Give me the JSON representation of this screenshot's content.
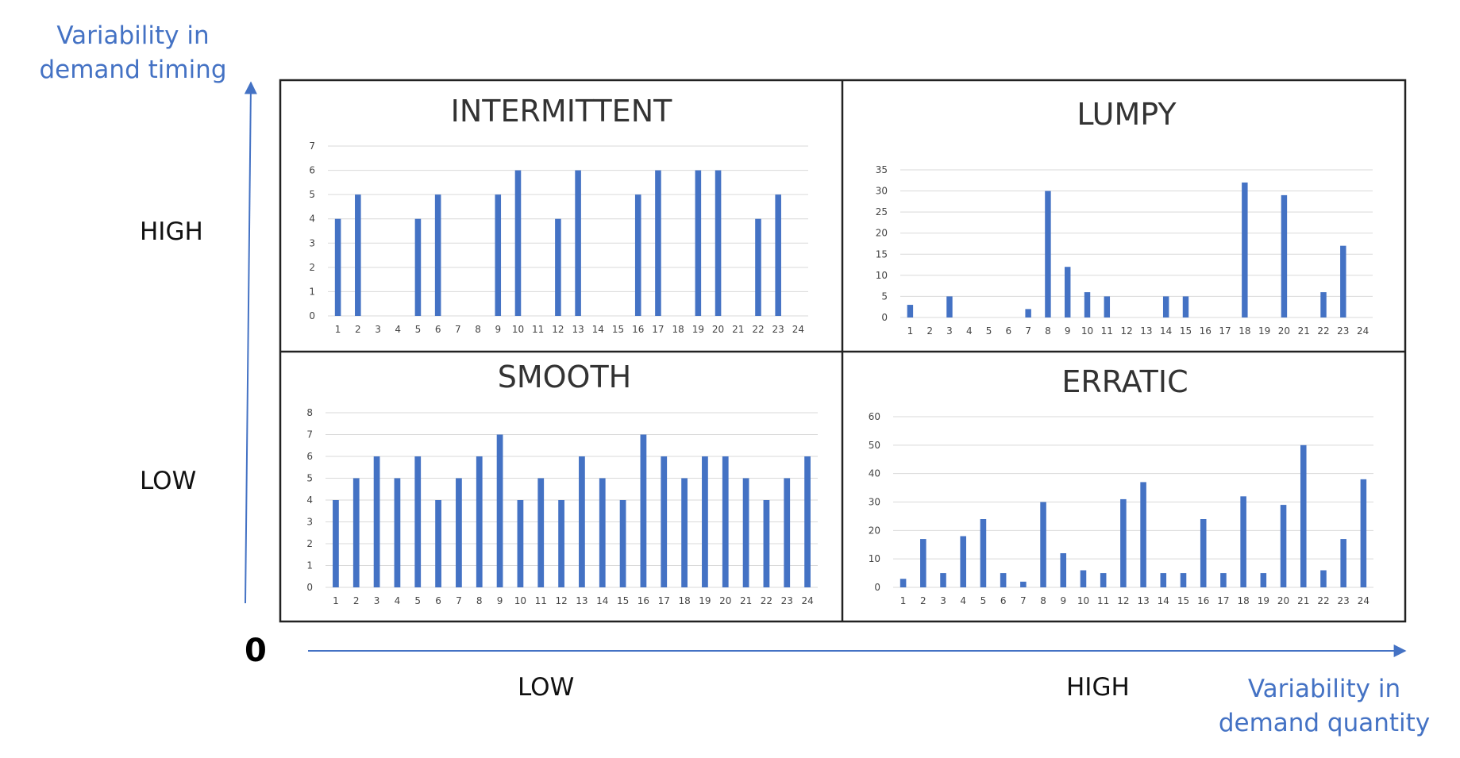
{
  "matrix": {
    "y_axis_title": [
      "Variability in",
      "demand timing"
    ],
    "x_axis_title": [
      "Variability in",
      "demand quantity"
    ],
    "origin_label": "0",
    "y_levels": {
      "high": "HIGH",
      "low": "LOW"
    },
    "x_levels": {
      "low": "LOW",
      "high": "HIGH"
    }
  },
  "colors": {
    "bar": "#4472C4",
    "axis_arrow": "#4472C4",
    "grid": "#D9D9D9",
    "border": "#222222"
  },
  "chart_data": [
    {
      "type": "bar",
      "title": "INTERMITTENT",
      "categories": [
        "1",
        "2",
        "3",
        "4",
        "5",
        "6",
        "7",
        "8",
        "9",
        "10",
        "11",
        "12",
        "13",
        "14",
        "15",
        "16",
        "17",
        "18",
        "19",
        "20",
        "21",
        "22",
        "23",
        "24"
      ],
      "values": [
        4,
        5,
        0,
        0,
        4,
        5,
        0,
        0,
        5,
        6,
        0,
        4,
        6,
        0,
        0,
        5,
        6,
        0,
        6,
        6,
        0,
        4,
        5,
        0
      ],
      "ylim": [
        0,
        7
      ],
      "yticks": [
        0,
        1,
        2,
        3,
        4,
        5,
        6,
        7
      ],
      "grid": true
    },
    {
      "type": "bar",
      "title": "LUMPY",
      "categories": [
        "1",
        "2",
        "3",
        "4",
        "5",
        "6",
        "7",
        "8",
        "9",
        "10",
        "11",
        "12",
        "13",
        "14",
        "15",
        "16",
        "17",
        "18",
        "19",
        "20",
        "21",
        "22",
        "23",
        "24"
      ],
      "values": [
        3,
        0,
        5,
        0,
        0,
        0,
        2,
        30,
        12,
        6,
        5,
        0,
        0,
        5,
        5,
        0,
        0,
        32,
        0,
        29,
        0,
        6,
        17,
        0
      ],
      "ylim": [
        0,
        35
      ],
      "yticks": [
        0,
        5,
        10,
        15,
        20,
        25,
        30,
        35
      ],
      "grid": true
    },
    {
      "type": "bar",
      "title": "SMOOTH",
      "categories": [
        "1",
        "2",
        "3",
        "4",
        "5",
        "6",
        "7",
        "8",
        "9",
        "10",
        "11",
        "12",
        "13",
        "14",
        "15",
        "16",
        "17",
        "18",
        "19",
        "20",
        "21",
        "22",
        "23",
        "24"
      ],
      "values": [
        4,
        5,
        6,
        5,
        6,
        4,
        5,
        6,
        7,
        4,
        5,
        4,
        6,
        5,
        4,
        7,
        6,
        5,
        6,
        6,
        5,
        4,
        5,
        6
      ],
      "ylim": [
        0,
        8
      ],
      "yticks": [
        0,
        1,
        2,
        3,
        4,
        5,
        6,
        7,
        8
      ],
      "grid": true
    },
    {
      "type": "bar",
      "title": "ERRATIC",
      "categories": [
        "1",
        "2",
        "3",
        "4",
        "5",
        "6",
        "7",
        "8",
        "9",
        "10",
        "11",
        "12",
        "13",
        "14",
        "15",
        "16",
        "17",
        "18",
        "19",
        "20",
        "21",
        "22",
        "23",
        "24"
      ],
      "values": [
        3,
        17,
        5,
        18,
        24,
        5,
        2,
        30,
        12,
        6,
        5,
        31,
        37,
        5,
        5,
        24,
        5,
        32,
        5,
        29,
        50,
        6,
        17,
        38
      ],
      "ylim": [
        0,
        60
      ],
      "yticks": [
        0,
        10,
        20,
        30,
        40,
        50,
        60
      ],
      "grid": true
    }
  ]
}
